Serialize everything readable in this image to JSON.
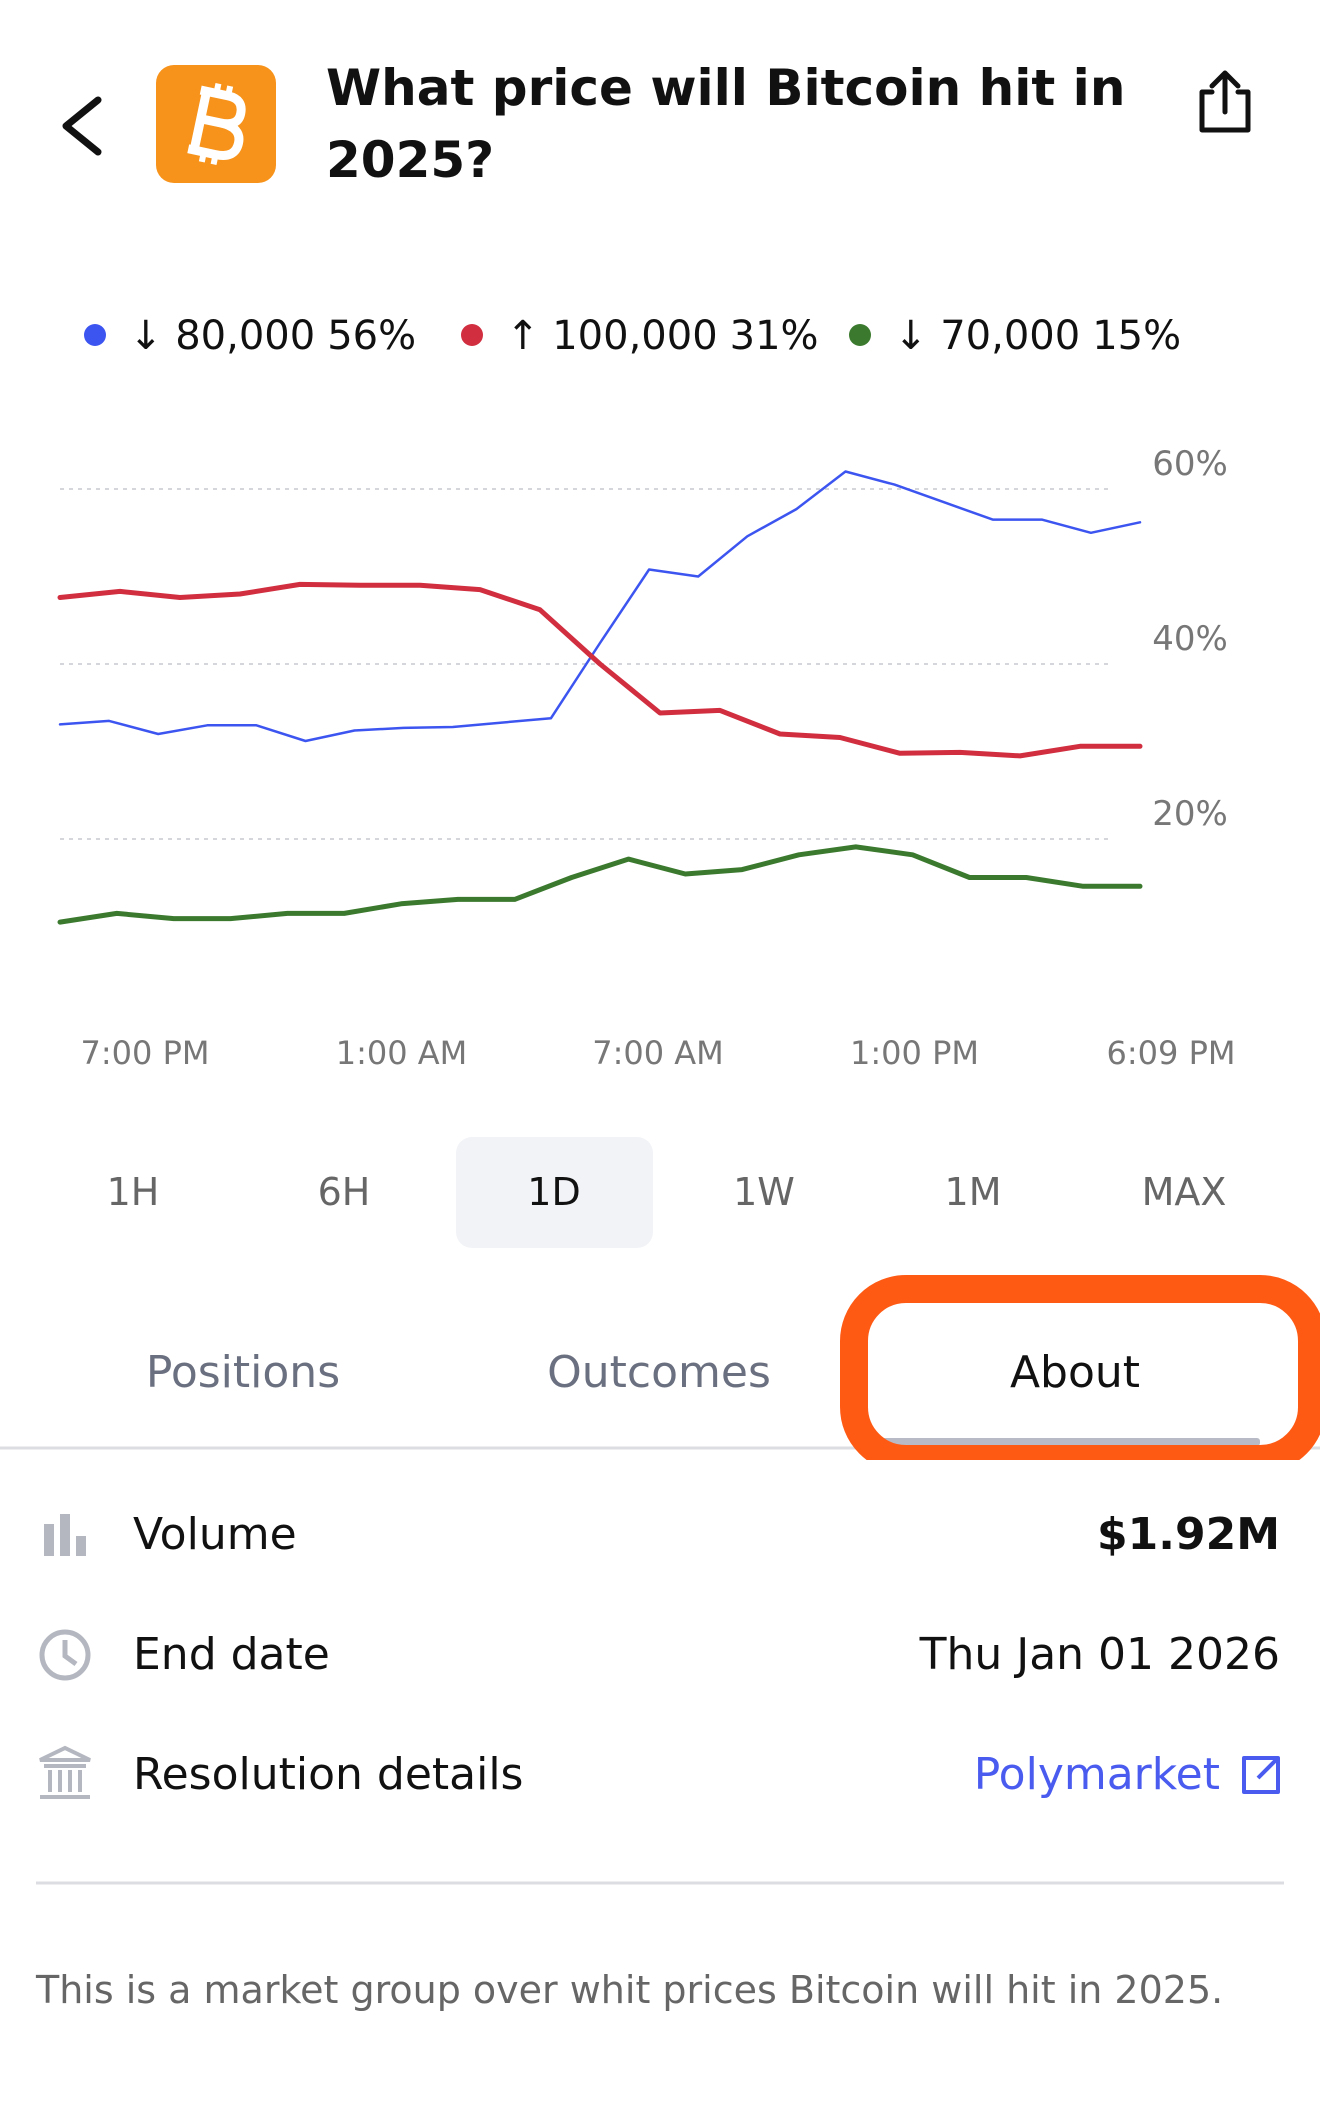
{
  "header": {
    "title": "What price will Bitcoin hit in 2025?"
  },
  "chart_data": {
    "type": "line",
    "series": [
      {
        "name": "↓ 80,000",
        "legend_value": "56%",
        "color": "#3d55f0",
        "values": [
          33.1,
          33.5,
          32,
          33,
          33,
          31.2,
          32.4,
          32.7,
          32.8,
          33.3,
          33.8,
          42.4,
          50.8,
          50,
          54.6,
          57.7,
          62,
          60.5,
          58.5,
          56.5,
          56.5,
          55,
          56.2
        ]
      },
      {
        "name": "↑ 100,000",
        "legend_value": "31%",
        "color": "#d12e3f",
        "values": [
          47.6,
          48.3,
          47.6,
          48,
          49.1,
          49,
          49,
          48.5,
          46.2,
          40,
          34.4,
          34.7,
          32,
          31.6,
          29.8,
          29.9,
          29.5,
          30.6,
          30.6
        ]
      },
      {
        "name": "↓ 70,000",
        "legend_value": "15%",
        "color": "#3b7a2e",
        "values": [
          10.5,
          11.5,
          10.9,
          10.9,
          11.5,
          11.5,
          12.6,
          13.1,
          13.1,
          15.6,
          17.7,
          16,
          16.5,
          18.2,
          19.1,
          18.2,
          15.6,
          15.6,
          14.6,
          14.6
        ]
      }
    ],
    "x_labels": [
      "7:00 PM",
      "1:00 AM",
      "7:00 AM",
      "1:00 PM",
      "6:09 PM"
    ],
    "ylim": [
      7,
      65
    ],
    "yticks": [
      {
        "value": 20,
        "label": "20%"
      },
      {
        "value": 40,
        "label": "40%"
      },
      {
        "value": 60,
        "label": "60%"
      }
    ],
    "grid": true
  },
  "ranges": {
    "options": [
      "1H",
      "6H",
      "1D",
      "1W",
      "1M",
      "MAX"
    ],
    "selected": 2
  },
  "tabs": {
    "items": [
      "Positions",
      "Outcomes",
      "About"
    ],
    "selected": 2
  },
  "details": [
    {
      "label": "Volume",
      "value": "$1.92M"
    },
    {
      "label": "End date",
      "value": "Thu Jan 01 2026"
    },
    {
      "label": "Resolution details",
      "value": "Polymarket"
    }
  ],
  "description": "This is a market group over whit prices Bitcoin will hit in 2025."
}
